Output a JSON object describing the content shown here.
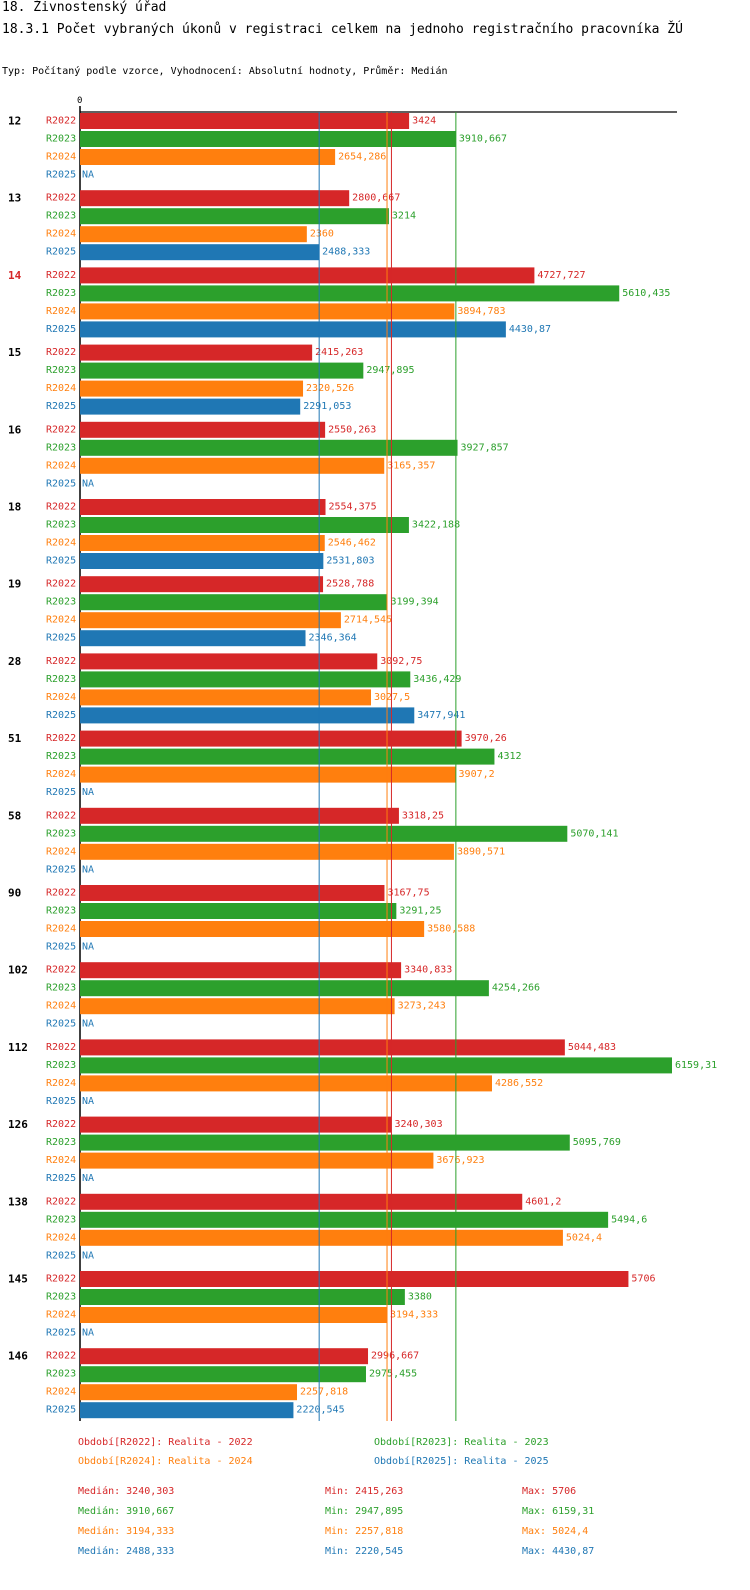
{
  "chart_data": {
    "type": "bar",
    "orientation": "horizontal",
    "title": "18. Živnostenský úřad",
    "subtitle": "18.3.1 Počet vybraných úkonů v registraci celkem na jednoho registračního pracovníka ŽÚ",
    "description": "Typ: Počítaný podle vzorce, Vyhodnocení: Absolutní hodnoty, Průměr: Medián",
    "axis_zero_label": "0",
    "xlim": [
      0,
      6159.31
    ],
    "highlight_category": "14",
    "categories": [
      "12",
      "13",
      "14",
      "15",
      "16",
      "18",
      "19",
      "28",
      "51",
      "58",
      "90",
      "102",
      "112",
      "126",
      "138",
      "145",
      "146"
    ],
    "series": [
      {
        "name": "R2022",
        "color": "#d62728",
        "values": [
          3424,
          2800.667,
          4727.727,
          2415.263,
          2550.263,
          2554.375,
          2528.788,
          3092.75,
          3970.26,
          3318.25,
          3167.75,
          3340.833,
          5044.483,
          3240.303,
          4601.2,
          5706,
          2996.667
        ],
        "labels": [
          "3424",
          "2800,667",
          "4727,727",
          "2415,263",
          "2550,263",
          "2554,375",
          "2528,788",
          "3092,75",
          "3970,26",
          "3318,25",
          "3167,75",
          "3340,833",
          "5044,483",
          "3240,303",
          "4601,2",
          "5706",
          "2996,667"
        ]
      },
      {
        "name": "R2023",
        "color": "#2ca02c",
        "values": [
          3910.667,
          3214,
          5610.435,
          2947.895,
          3927.857,
          3422.188,
          3199.394,
          3436.429,
          4312,
          5070.141,
          3291.25,
          4254.266,
          6159.31,
          5095.769,
          5494.6,
          3380,
          2975.455
        ],
        "labels": [
          "3910,667",
          "3214",
          "5610,435",
          "2947,895",
          "3927,857",
          "3422,188",
          "3199,394",
          "3436,429",
          "4312",
          "5070,141",
          "3291,25",
          "4254,266",
          "6159,31",
          "5095,769",
          "5494,6",
          "3380",
          "2975,455"
        ]
      },
      {
        "name": "R2024",
        "color": "#ff7f0e",
        "values": [
          2654.286,
          2360,
          3894.783,
          2320.526,
          3165.357,
          2546.462,
          2714.545,
          3027.5,
          3907.2,
          3890.571,
          3580.588,
          3273.243,
          4286.552,
          3676.923,
          5024.4,
          3194.333,
          2257.818
        ],
        "labels": [
          "2654,286",
          "2360",
          "3894,783",
          "2320,526",
          "3165,357",
          "2546,462",
          "2714,545",
          "3027,5",
          "3907,2",
          "3890,571",
          "3580,588",
          "3273,243",
          "4286,552",
          "3676,923",
          "5024,4",
          "3194,333",
          "2257,818"
        ]
      },
      {
        "name": "R2025",
        "color": "#1f77b4",
        "values": [
          null,
          2488.333,
          4430.87,
          2291.053,
          null,
          2531.803,
          2346.364,
          3477.941,
          null,
          null,
          null,
          null,
          null,
          null,
          null,
          null,
          2220.545
        ],
        "labels": [
          "NA",
          "2488,333",
          "4430,87",
          "2291,053",
          "NA",
          "2531,803",
          "2346,364",
          "3477,941",
          "NA",
          "NA",
          "NA",
          "NA",
          "NA",
          "NA",
          "NA",
          "NA",
          "2220,545"
        ]
      }
    ],
    "median_lines": [
      {
        "series": "R2022",
        "value": 3240.303,
        "color": "#d62728"
      },
      {
        "series": "R2023",
        "value": 3910.667,
        "color": "#2ca02c"
      },
      {
        "series": "R2024",
        "value": 3194.333,
        "color": "#ff7f0e"
      },
      {
        "series": "R2025",
        "value": 2488.333,
        "color": "#1f77b4"
      }
    ],
    "legend": [
      {
        "text": "Období[R2022]: Realita - 2022",
        "color": "#d62728"
      },
      {
        "text": "Období[R2023]: Realita - 2023",
        "color": "#2ca02c"
      },
      {
        "text": "Období[R2024]: Realita - 2024",
        "color": "#ff7f0e"
      },
      {
        "text": "Období[R2025]: Realita - 2025",
        "color": "#1f77b4"
      }
    ],
    "stats": [
      {
        "color": "#d62728",
        "median": "Medián: 3240,303",
        "min": "Min: 2415,263",
        "max": "Max: 5706"
      },
      {
        "color": "#2ca02c",
        "median": "Medián: 3910,667",
        "min": "Min: 2947,895",
        "max": "Max: 6159,31"
      },
      {
        "color": "#ff7f0e",
        "median": "Medián: 3194,333",
        "min": "Min: 2257,818",
        "max": "Max: 5024,4"
      },
      {
        "color": "#1f77b4",
        "median": "Medián: 2488,333",
        "min": "Min: 2220,545",
        "max": "Max: 4430,87"
      }
    ]
  }
}
